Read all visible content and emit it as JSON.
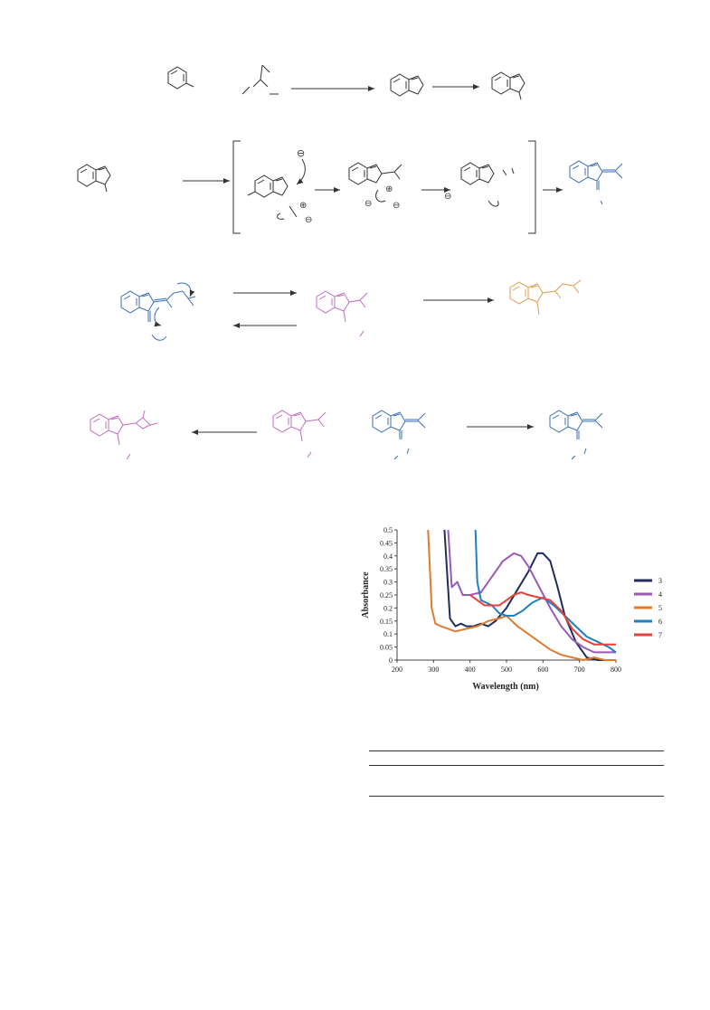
{
  "colors": {
    "black": "#333333",
    "blue": "#3a6fb5",
    "magenta": "#c36cc3",
    "orange": "#e59a4a"
  },
  "charge_symbol": "⊖",
  "plus_symbol": "⊕",
  "chart_data": {
    "type": "line",
    "xlabel": "Wavelength (nm)",
    "ylabel": "Absorbance",
    "xlim": [
      200,
      800
    ],
    "ylim": [
      0,
      0.5
    ],
    "xticks": [
      "200",
      "300",
      "400",
      "500",
      "600",
      "700",
      "800"
    ],
    "yticks": [
      "0",
      "0.05",
      "0.1",
      "0.15",
      "0.2",
      "0.25",
      "0.3",
      "0.35",
      "0.4",
      "0.45",
      "0.5"
    ],
    "grid": false,
    "legend_position": "right",
    "series": [
      {
        "name": "3",
        "color": "#1f2d5c",
        "x": [
          330,
          345,
          360,
          375,
          390,
          410,
          430,
          450,
          470,
          500,
          530,
          560,
          585,
          600,
          620,
          640,
          660,
          690,
          720,
          750,
          780,
          800
        ],
        "y": [
          0.5,
          0.16,
          0.13,
          0.14,
          0.13,
          0.13,
          0.14,
          0.13,
          0.15,
          0.2,
          0.27,
          0.34,
          0.41,
          0.41,
          0.38,
          0.28,
          0.17,
          0.07,
          0.01,
          0.0,
          0.0,
          0.0
        ]
      },
      {
        "name": "4",
        "color": "#9b59b6",
        "x": [
          340,
          350,
          365,
          380,
          400,
          430,
          460,
          490,
          520,
          540,
          560,
          590,
          620,
          650,
          680,
          710,
          740,
          770,
          800
        ],
        "y": [
          0.5,
          0.28,
          0.3,
          0.25,
          0.25,
          0.26,
          0.32,
          0.38,
          0.41,
          0.4,
          0.36,
          0.28,
          0.2,
          0.13,
          0.08,
          0.05,
          0.03,
          0.03,
          0.03
        ]
      },
      {
        "name": "5",
        "color": "#e07b2e",
        "x": [
          285,
          295,
          305,
          320,
          340,
          360,
          390,
          420,
          450,
          480,
          500,
          530,
          560,
          590,
          620,
          650,
          680,
          710,
          740,
          770,
          800
        ],
        "y": [
          0.5,
          0.2,
          0.14,
          0.13,
          0.12,
          0.11,
          0.12,
          0.13,
          0.15,
          0.16,
          0.17,
          0.13,
          0.1,
          0.07,
          0.04,
          0.02,
          0.01,
          0.0,
          0.01,
          0.0,
          0.0
        ]
      },
      {
        "name": "6",
        "color": "#1e7fc3",
        "x": [
          415,
          420,
          430,
          445,
          460,
          480,
          500,
          520,
          545,
          570,
          600,
          630,
          660,
          690,
          720,
          750,
          780,
          800
        ],
        "y": [
          0.5,
          0.3,
          0.23,
          0.22,
          0.21,
          0.18,
          0.17,
          0.17,
          0.19,
          0.22,
          0.24,
          0.21,
          0.17,
          0.13,
          0.09,
          0.07,
          0.05,
          0.03
        ]
      },
      {
        "name": "7",
        "color": "#e8403a",
        "x": [
          400,
          420,
          440,
          460,
          480,
          500,
          520,
          540,
          560,
          590,
          620,
          650,
          680,
          710,
          740,
          770,
          800
        ],
        "y": [
          0.25,
          0.23,
          0.21,
          0.21,
          0.21,
          0.23,
          0.25,
          0.26,
          0.25,
          0.24,
          0.23,
          0.19,
          0.12,
          0.08,
          0.06,
          0.06,
          0.06
        ]
      }
    ]
  }
}
